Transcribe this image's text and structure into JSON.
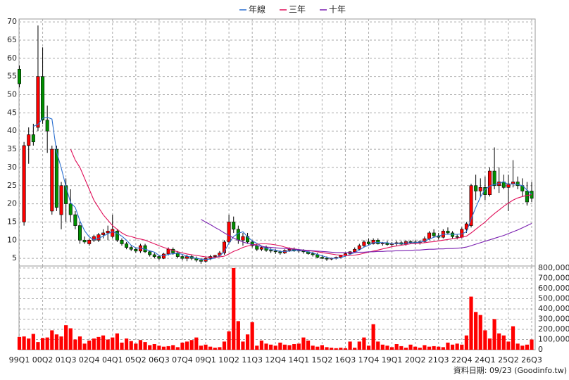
{
  "chart_data": {
    "type": "candlestick",
    "grid": true,
    "legend": "top",
    "up_color": "#ff0000",
    "down_color": "#009000",
    "categories": [
      "99Q1",
      null,
      null,
      null,
      null,
      "00Q2",
      null,
      null,
      null,
      null,
      "01Q3",
      null,
      null,
      null,
      null,
      "02Q4",
      null,
      null,
      null,
      null,
      "04Q1",
      null,
      null,
      null,
      null,
      "05Q2",
      null,
      null,
      null,
      null,
      "06Q3",
      null,
      null,
      null,
      null,
      "07Q4",
      null,
      null,
      null,
      null,
      "09Q1",
      null,
      null,
      null,
      null,
      "10Q2",
      null,
      null,
      null,
      null,
      "11Q3",
      null,
      null,
      null,
      null,
      "12Q4",
      null,
      null,
      null,
      null,
      "14Q1",
      null,
      null,
      null,
      null,
      "15Q2",
      null,
      null,
      null,
      null,
      "16Q3",
      null,
      null,
      null,
      null,
      "17Q4",
      null,
      null,
      null,
      null,
      "19Q1",
      null,
      null,
      null,
      null,
      "20Q2",
      null,
      null,
      null,
      null,
      "21Q3",
      null,
      null,
      null,
      null,
      "22Q4",
      null,
      null,
      null,
      null,
      "24Q1",
      null,
      null,
      null,
      null,
      "25Q2",
      null,
      null,
      null,
      null,
      "26Q3"
    ],
    "open": [
      57,
      15,
      36,
      39,
      41,
      55,
      43,
      18,
      35,
      17,
      25,
      20,
      17,
      14,
      10,
      9,
      10,
      10,
      11.5,
      12,
      11,
      12.5,
      10,
      9,
      8,
      7.5,
      7,
      8.5,
      6.8,
      6,
      5.5,
      5,
      6.2,
      7.5,
      6.5,
      5.5,
      5,
      5.5,
      5,
      4.5,
      4.2,
      5,
      5.5,
      5.8,
      6.5,
      9.5,
      15,
      13,
      10,
      11,
      9.5,
      8.5,
      7.5,
      8,
      7.2,
      7,
      6.8,
      6.5,
      7.2,
      7.5,
      7.2,
      7,
      6.8,
      6.3,
      6,
      5.3,
      5,
      4.8,
      5,
      5.3,
      5.8,
      6.3,
      6.8,
      7.5,
      8.5,
      9.5,
      9,
      10,
      9,
      9.2,
      8.8,
      9,
      9.3,
      8.9,
      9.6,
      9.5,
      9.3,
      9.6,
      10.4,
      12,
      11.2,
      10.8,
      12.5,
      12,
      11,
      10.8,
      13,
      14,
      25,
      23.5,
      24.5,
      22.5,
      29,
      25,
      26,
      24.5,
      25.5,
      26,
      25,
      23.5,
      23.5
    ],
    "high": [
      58,
      37,
      41,
      42,
      69,
      63,
      47,
      36,
      36,
      26,
      27,
      24,
      18,
      15,
      11,
      10.5,
      11.5,
      12,
      13,
      14,
      17,
      13,
      10.5,
      9.5,
      8.5,
      8,
      9,
      9,
      7,
      6.5,
      6,
      6.5,
      8,
      8,
      7,
      6,
      6,
      6,
      5.5,
      5,
      5.5,
      6,
      6,
      7,
      10,
      17,
      16.5,
      14,
      12,
      12,
      10,
      9,
      8.5,
      8.5,
      7.8,
      7.5,
      7.2,
      7.5,
      8,
      8,
      7.5,
      7.5,
      7.2,
      6.8,
      6.5,
      6,
      5.5,
      5.2,
      5.5,
      6,
      6.5,
      7,
      8,
      9,
      10,
      10.5,
      10.5,
      10.5,
      9.5,
      9.8,
      9.5,
      9.8,
      9.8,
      10,
      10,
      10,
      10,
      11,
      12.5,
      13,
      12,
      13,
      13.5,
      12.5,
      11.5,
      13.5,
      15,
      25.5,
      28,
      27,
      27.5,
      30,
      35.5,
      30,
      28,
      28,
      32,
      27.5,
      27,
      26,
      26
    ],
    "low": [
      52,
      14,
      31,
      36,
      40,
      42,
      34,
      17,
      18,
      13,
      15,
      15,
      13,
      9,
      9,
      8.5,
      9.5,
      9.5,
      10.5,
      10,
      10.5,
      9.5,
      8.5,
      7.5,
      7,
      6.5,
      6.5,
      6.5,
      5.5,
      5,
      4.5,
      4.8,
      5.8,
      6,
      5,
      4.5,
      4.2,
      4.5,
      4,
      3.5,
      3.8,
      4.5,
      5,
      5.5,
      6,
      9,
      12,
      9,
      8.5,
      9,
      8,
      7,
      7,
      6.8,
      6.5,
      6.2,
      6,
      6.2,
      6.8,
      6.8,
      6.5,
      6.3,
      6,
      5.5,
      5,
      4.8,
      4.3,
      4.5,
      4.7,
      5,
      5.5,
      6,
      6.5,
      7.2,
      8,
      8.5,
      8.8,
      8.8,
      8.5,
      8.5,
      8.3,
      8.5,
      8.6,
      8.5,
      9,
      8.8,
      8.8,
      9.4,
      10,
      10.8,
      10.2,
      10.5,
      11.5,
      10.5,
      10.2,
      10.5,
      12,
      13.5,
      21,
      22,
      21,
      22,
      24,
      23,
      24,
      18,
      24.5,
      24,
      22,
      19.5,
      20.5
    ],
    "close": [
      53,
      36,
      39,
      37,
      55,
      43,
      40,
      35,
      19,
      25,
      20,
      17,
      14,
      10,
      9.5,
      10,
      11,
      11.5,
      12,
      12.5,
      13,
      10,
      9,
      8,
      7.5,
      7,
      8.5,
      6.8,
      6,
      5.5,
      5,
      6.2,
      7.5,
      6.5,
      5.5,
      5,
      5.5,
      5,
      4.5,
      4.2,
      5,
      5.5,
      5.8,
      6.5,
      9.5,
      15,
      13,
      10,
      11,
      9.5,
      8.5,
      7.5,
      8,
      7.2,
      7,
      6.8,
      6.5,
      7.2,
      7.5,
      7.2,
      7,
      6.8,
      6.3,
      6,
      5.3,
      5,
      4.8,
      5,
      5.3,
      5.8,
      6.3,
      6.8,
      7.5,
      8.5,
      9.5,
      9,
      10,
      9,
      9.2,
      8.8,
      9,
      9.3,
      8.9,
      9.6,
      9.5,
      9.3,
      9.6,
      10.4,
      12,
      11.2,
      10.8,
      12.5,
      12,
      11,
      10.8,
      13,
      14.5,
      25,
      23.5,
      24.5,
      22.5,
      29,
      25,
      26,
      24.5,
      25.5,
      26,
      25,
      23.5,
      20.5,
      21.5
    ],
    "ylim": [
      2.9,
      70.8
    ],
    "yticks": [
      5,
      10,
      15,
      20,
      25,
      30,
      35,
      40,
      45,
      50,
      55,
      60,
      65,
      70
    ],
    "series": [
      {
        "name": "年線",
        "color": "#2a6fd0",
        "values": [
          null,
          null,
          null,
          41.3,
          41.8,
          43.5,
          43.8,
          43.3,
          34.3,
          29.8,
          24.8,
          20.3,
          19,
          15.3,
          12.6,
          10.9,
          10.1,
          10.5,
          11.1,
          11.8,
          12.3,
          11.9,
          11.1,
          10,
          8.6,
          7.9,
          7.8,
          7.5,
          7.1,
          6.7,
          5.8,
          5.7,
          6.1,
          6.3,
          6.4,
          6.1,
          5.6,
          5.3,
          5,
          4.8,
          4.7,
          4.8,
          5.1,
          5.7,
          6.8,
          9.2,
          11,
          11.9,
          12.3,
          10.9,
          9.8,
          9.1,
          8.4,
          7.8,
          7.4,
          7.3,
          6.9,
          6.9,
          7,
          7.1,
          7.2,
          7.1,
          6.8,
          6.5,
          6.1,
          5.7,
          5.3,
          5,
          5,
          5.2,
          5.6,
          6.1,
          6.6,
          7.3,
          8.1,
          8.6,
          9.3,
          9.4,
          9.3,
          9.3,
          9,
          9.1,
          9,
          9.2,
          9.3,
          9.3,
          9.5,
          9.7,
          10.3,
          10.8,
          11.1,
          11.6,
          11.6,
          11.6,
          11.6,
          11.7,
          12.3,
          15.8,
          19,
          21.9,
          23.9,
          24.9,
          25.3,
          25.6,
          26.1,
          25.3,
          25.5,
          25.3,
          25,
          23.8,
          22.6
        ]
      },
      {
        "name": "三年",
        "color": "#e0105a",
        "values": [
          null,
          null,
          null,
          null,
          null,
          null,
          null,
          null,
          null,
          null,
          null,
          35,
          32,
          30,
          27,
          24,
          21,
          19,
          17,
          15.5,
          14,
          13,
          12,
          11.3,
          11,
          10.6,
          10.3,
          10,
          9.5,
          9,
          8.5,
          8,
          7.6,
          7.2,
          6.8,
          6.5,
          6.2,
          6,
          5.8,
          5.6,
          5.4,
          5.3,
          5.3,
          5.4,
          5.6,
          6.2,
          6.9,
          7.4,
          8,
          8.4,
          8.7,
          8.9,
          9,
          9,
          8.9,
          8.7,
          8.5,
          8.1,
          7.8,
          7.6,
          7.4,
          7.2,
          7.1,
          7,
          6.8,
          6.6,
          6.4,
          6.2,
          6,
          5.9,
          5.8,
          5.8,
          5.9,
          6.1,
          6.4,
          6.7,
          7,
          7.3,
          7.6,
          7.9,
          8.2,
          8.4,
          8.6,
          8.8,
          9,
          9.1,
          9.2,
          9.3,
          9.5,
          9.6,
          9.8,
          10,
          10.2,
          10.4,
          10.6,
          10.8,
          11.1,
          12,
          13,
          14,
          15,
          16.2,
          17.3,
          18.3,
          19.3,
          20.2,
          21,
          21.6,
          22,
          22.3,
          22.5
        ]
      },
      {
        "name": "十年",
        "color": "#7a1fb0",
        "values": [
          null,
          null,
          null,
          null,
          null,
          null,
          null,
          null,
          null,
          null,
          null,
          null,
          null,
          null,
          null,
          null,
          null,
          null,
          null,
          null,
          null,
          null,
          null,
          null,
          null,
          null,
          null,
          null,
          null,
          null,
          null,
          null,
          null,
          null,
          null,
          null,
          null,
          null,
          null,
          15.7,
          15,
          14.3,
          13.5,
          12.8,
          12,
          11.3,
          10.6,
          10,
          9.5,
          9.1,
          8.8,
          8.5,
          8.3,
          8.1,
          8,
          7.9,
          7.8,
          7.7,
          7.6,
          7.5,
          7.4,
          7.3,
          7.2,
          7.1,
          7,
          6.9,
          6.8,
          6.7,
          6.6,
          6.6,
          6.6,
          6.6,
          6.6,
          6.7,
          6.7,
          6.8,
          6.8,
          6.9,
          6.9,
          7,
          7,
          7.1,
          7.1,
          7.2,
          7.2,
          7.3,
          7.3,
          7.4,
          7.5,
          7.5,
          7.6,
          7.6,
          7.7,
          7.7,
          7.8,
          7.9,
          8.1,
          8.5,
          8.9,
          9.3,
          9.7,
          10.1,
          10.5,
          10.9,
          11.3,
          11.8,
          12.3,
          12.8,
          13.4,
          14,
          14.6
        ]
      }
    ],
    "volume": {
      "type": "bar",
      "color": "#ff0000",
      "values": [
        125000,
        130000,
        110000,
        155000,
        75000,
        115000,
        120000,
        190000,
        150000,
        130000,
        240000,
        210000,
        100000,
        130000,
        60000,
        90000,
        110000,
        125000,
        140000,
        100000,
        120000,
        160000,
        70000,
        110000,
        85000,
        60000,
        95000,
        75000,
        45000,
        55000,
        40000,
        30000,
        35000,
        45000,
        25000,
        70000,
        80000,
        95000,
        120000,
        40000,
        50000,
        30000,
        20000,
        25000,
        80000,
        180000,
        800000,
        280000,
        80000,
        150000,
        270000,
        40000,
        90000,
        60000,
        50000,
        40000,
        70000,
        50000,
        45000,
        55000,
        60000,
        120000,
        90000,
        40000,
        30000,
        45000,
        25000,
        20000,
        15000,
        20000,
        15000,
        80000,
        20000,
        80000,
        120000,
        40000,
        250000,
        80000,
        50000,
        40000,
        25000,
        55000,
        35000,
        20000,
        50000,
        30000,
        20000,
        45000,
        30000,
        35000,
        30000,
        25000,
        70000,
        50000,
        60000,
        50000,
        140000,
        520000,
        370000,
        340000,
        190000,
        110000,
        300000,
        160000,
        140000,
        80000,
        230000,
        60000,
        40000,
        50000,
        100000
      ],
      "ylim": [
        0,
        820000
      ],
      "yticks": [
        0,
        {
          "value": 100000,
          "label": "100,000"
        },
        {
          "value": 200000,
          "label": "200,000"
        },
        {
          "value": 300000,
          "label": "300,000"
        },
        {
          "value": 400000,
          "label": "400,000"
        },
        {
          "value": 500000,
          "label": "500,000"
        },
        {
          "value": 600000,
          "label": "600,000"
        },
        {
          "value": 700000,
          "label": "700,000"
        },
        {
          "value": 800000,
          "label": "800,000"
        }
      ]
    },
    "source": "資料日期: 09/23 (Goodinfo.tw)"
  }
}
